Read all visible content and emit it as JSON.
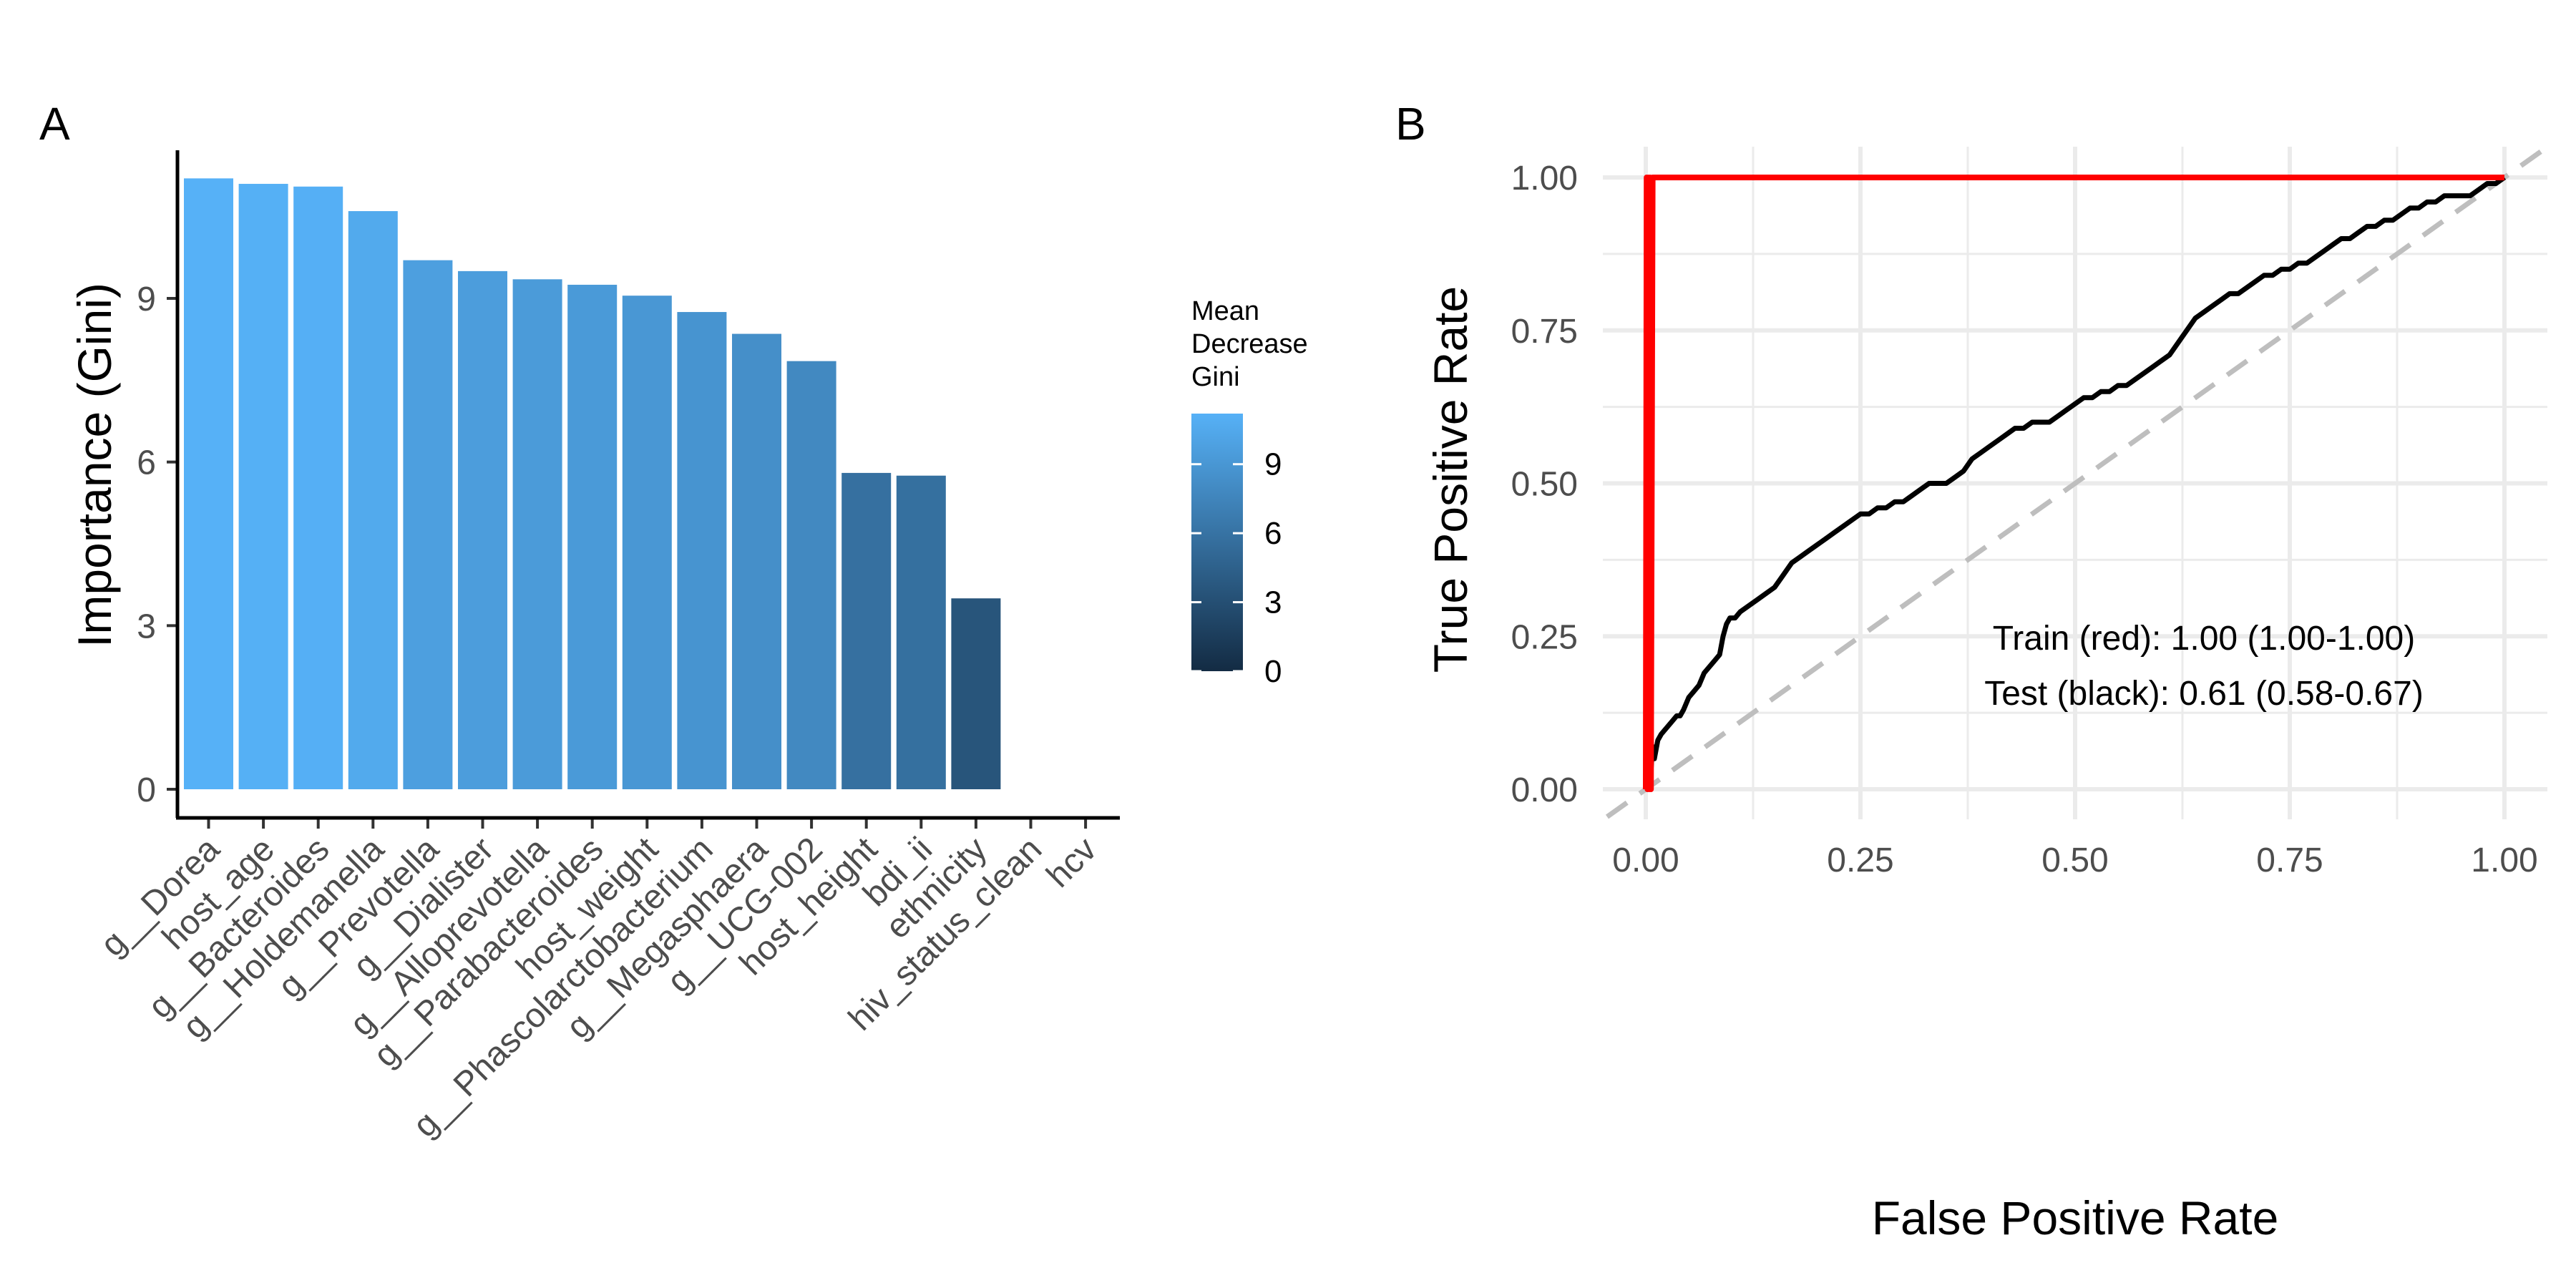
{
  "chart_data": [
    {
      "panel": "A",
      "type": "bar",
      "ylabel": "Importance (Gini)",
      "ylim": [
        0,
        12.5
      ],
      "yticks": [
        0,
        3,
        6,
        9
      ],
      "categories": [
        "g__Dorea",
        "host_age",
        "g__Bacteroides",
        "g__Holdemanella",
        "g__Prevotella",
        "g__Dialister",
        "g__Alloprevotella",
        "g__Parabacteroides",
        "host_weight",
        "g__Phascolarctobacterium",
        "g__Megasphaera",
        "g__UCG-002",
        "host_height",
        "bdi_ii",
        "ethnicity",
        "hiv_status_clean",
        "hcv"
      ],
      "values": [
        11.2,
        11.1,
        11.05,
        10.6,
        9.7,
        9.5,
        9.35,
        9.25,
        9.05,
        8.75,
        8.35,
        7.85,
        5.8,
        5.75,
        3.5,
        0,
        0
      ],
      "legend": {
        "title_lines": [
          "Mean",
          "Decrease",
          "Gini"
        ],
        "ticks": [
          0,
          3,
          6,
          9
        ],
        "range": [
          0,
          11.2
        ],
        "color_low": "#132B43",
        "color_high": "#56B1F7",
        "placement": "right"
      },
      "grid": false
    },
    {
      "panel": "B",
      "type": "line",
      "xlabel": "False Positive Rate",
      "ylabel": "True Positive Rate",
      "xlim": [
        0,
        1
      ],
      "ylim": [
        0,
        1
      ],
      "xticks": [
        "0.00",
        "0.25",
        "0.50",
        "0.75",
        "1.00"
      ],
      "yticks": [
        "0.00",
        "0.25",
        "0.50",
        "0.75",
        "1.00"
      ],
      "grid": true,
      "series": [
        {
          "color": "#FF0000",
          "x": [
            0.0,
            0.001,
            0.002,
            0.003,
            0.004,
            0.005,
            0.006,
            0.008,
            0.01,
            0.5,
            1.0
          ],
          "y": [
            0.0,
            1.0,
            0.0,
            1.0,
            0.0,
            1.0,
            0.0,
            1.0,
            1.0,
            1.0,
            1.0
          ]
        },
        {
          "color": "#000000",
          "x": [
            0.0,
            0.002,
            0.004,
            0.006,
            0.008,
            0.01,
            0.014,
            0.018,
            0.024,
            0.03,
            0.036,
            0.04,
            0.044,
            0.05,
            0.056,
            0.062,
            0.068,
            0.074,
            0.08,
            0.086,
            0.09,
            0.094,
            0.098,
            0.104,
            0.11,
            0.12,
            0.13,
            0.14,
            0.15,
            0.16,
            0.17,
            0.18,
            0.19,
            0.2,
            0.21,
            0.22,
            0.23,
            0.24,
            0.25,
            0.26,
            0.27,
            0.28,
            0.29,
            0.3,
            0.31,
            0.32,
            0.33,
            0.34,
            0.35,
            0.36,
            0.37,
            0.38,
            0.39,
            0.4,
            0.41,
            0.42,
            0.43,
            0.44,
            0.45,
            0.46,
            0.47,
            0.48,
            0.49,
            0.5,
            0.51,
            0.52,
            0.53,
            0.54,
            0.55,
            0.56,
            0.57,
            0.58,
            0.59,
            0.6,
            0.61,
            0.62,
            0.63,
            0.64,
            0.65,
            0.66,
            0.67,
            0.68,
            0.69,
            0.7,
            0.71,
            0.72,
            0.73,
            0.74,
            0.75,
            0.76,
            0.77,
            0.78,
            0.79,
            0.8,
            0.81,
            0.82,
            0.83,
            0.84,
            0.85,
            0.86,
            0.87,
            0.88,
            0.89,
            0.9,
            0.91,
            0.92,
            0.93,
            0.94,
            0.95,
            0.96,
            0.97,
            0.98,
            0.99,
            1.0
          ],
          "y": [
            0.0,
            0.01,
            0.06,
            0.03,
            0.07,
            0.05,
            0.08,
            0.09,
            0.1,
            0.11,
            0.12,
            0.12,
            0.13,
            0.15,
            0.16,
            0.17,
            0.19,
            0.2,
            0.21,
            0.22,
            0.25,
            0.27,
            0.28,
            0.28,
            0.29,
            0.3,
            0.31,
            0.32,
            0.33,
            0.35,
            0.37,
            0.38,
            0.39,
            0.4,
            0.41,
            0.42,
            0.43,
            0.44,
            0.45,
            0.45,
            0.46,
            0.46,
            0.47,
            0.47,
            0.48,
            0.49,
            0.5,
            0.5,
            0.5,
            0.51,
            0.52,
            0.54,
            0.55,
            0.56,
            0.57,
            0.58,
            0.59,
            0.59,
            0.6,
            0.6,
            0.6,
            0.61,
            0.62,
            0.63,
            0.64,
            0.64,
            0.65,
            0.65,
            0.66,
            0.66,
            0.67,
            0.68,
            0.69,
            0.7,
            0.71,
            0.73,
            0.75,
            0.77,
            0.78,
            0.79,
            0.8,
            0.81,
            0.81,
            0.82,
            0.83,
            0.84,
            0.84,
            0.85,
            0.85,
            0.86,
            0.86,
            0.87,
            0.88,
            0.89,
            0.9,
            0.9,
            0.91,
            0.92,
            0.92,
            0.93,
            0.93,
            0.94,
            0.95,
            0.95,
            0.96,
            0.96,
            0.97,
            0.97,
            0.97,
            0.97,
            0.98,
            0.99,
            0.99,
            1.0
          ]
        }
      ],
      "reference_line": {
        "color": "#BEBEBE",
        "dashed": true
      },
      "annotations": [
        "Train (red): 1.00 (1.00-1.00)",
        "Test (black): 0.61 (0.58-0.67)"
      ]
    }
  ]
}
